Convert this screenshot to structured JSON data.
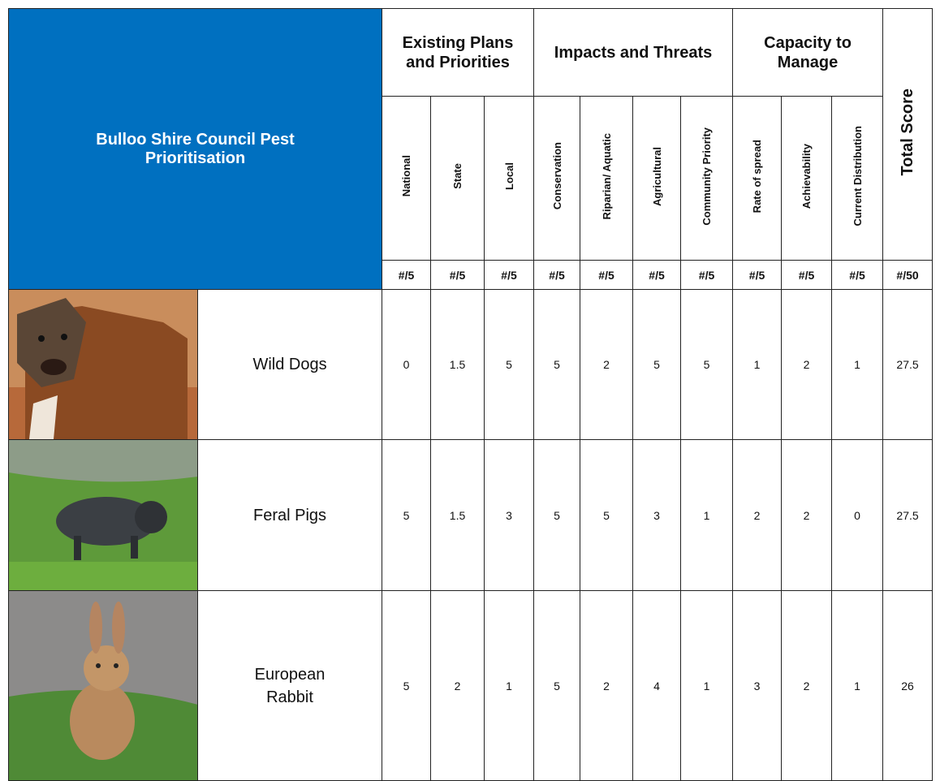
{
  "table": {
    "title": "Bulloo Shire Council Pest Prioritisation",
    "groups": [
      "Existing Plans and Priorities",
      "Impacts and Threats",
      "Capacity to Manage"
    ],
    "total_header": "Total Score",
    "columns": [
      "National",
      "State",
      "Local",
      "Conservation",
      "Riparian/ Aquatic",
      "Agricultural",
      "Community Priority",
      "Rate of spread",
      "Achievability",
      "Current Distribution"
    ],
    "units": [
      "#/5",
      "#/5",
      "#/5",
      "#/5",
      "#/5",
      "#/5",
      "#/5",
      "#/5",
      "#/5",
      "#/5",
      "#/50"
    ],
    "rows": [
      {
        "name": "Wild Dogs",
        "scores": [
          0,
          1.5,
          5,
          5,
          2,
          5,
          5,
          1,
          2,
          1
        ],
        "total": 27.5
      },
      {
        "name": "Feral Pigs",
        "scores": [
          5,
          1.5,
          3,
          5,
          5,
          3,
          1,
          2,
          2,
          0
        ],
        "total": 27.5
      },
      {
        "name": "European Rabbit",
        "scores": [
          5,
          2,
          1,
          5,
          2,
          4,
          1,
          3,
          2,
          1
        ],
        "total": 26
      }
    ]
  }
}
